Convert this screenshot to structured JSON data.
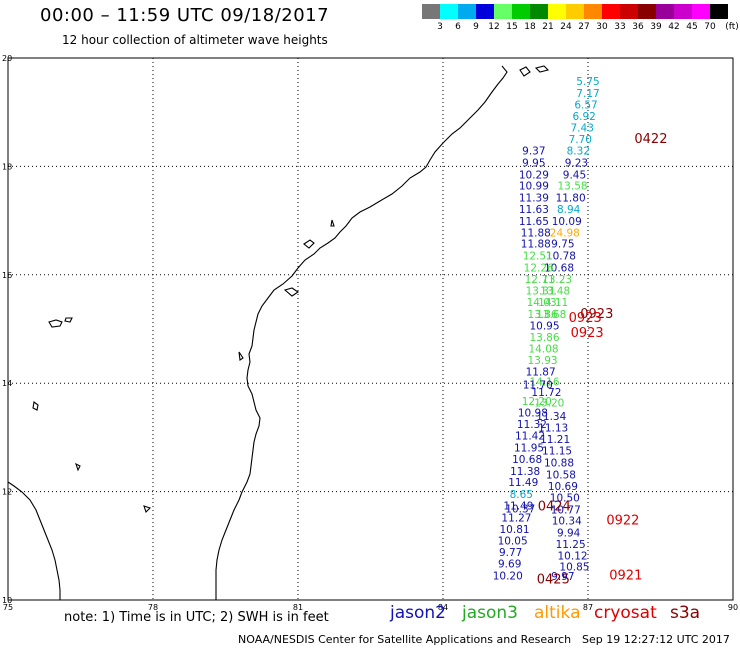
{
  "title": "00:00 – 11:59 UTC 09/18/2017",
  "subtitle": "12 hour collection of altimeter wave heights",
  "legend": {
    "unit": "(ft)",
    "bins": [
      {
        "color": "#777777",
        "label": "3"
      },
      {
        "color": "#00ffff",
        "label": "6"
      },
      {
        "color": "#00aaee",
        "label": "9"
      },
      {
        "color": "#0000dd",
        "label": "12"
      },
      {
        "color": "#66ff66",
        "label": "15"
      },
      {
        "color": "#00cc00",
        "label": "18"
      },
      {
        "color": "#008800",
        "label": "21"
      },
      {
        "color": "#ffff00",
        "label": "24"
      },
      {
        "color": "#ffcc00",
        "label": "27"
      },
      {
        "color": "#ff8800",
        "label": "30"
      },
      {
        "color": "#ff0000",
        "label": "33"
      },
      {
        "color": "#cc0000",
        "label": "36"
      },
      {
        "color": "#880000",
        "label": "39"
      },
      {
        "color": "#990099",
        "label": "42"
      },
      {
        "color": "#cc00cc",
        "label": "45"
      },
      {
        "color": "#ff00ff",
        "label": "70"
      },
      {
        "color": "#000000",
        "label": ""
      }
    ]
  },
  "map": {
    "lon_range": [
      75,
      90
    ],
    "lat_range": [
      10,
      20
    ],
    "lon_ticks": [
      75,
      78,
      81,
      84,
      87,
      90
    ],
    "lat_ticks": [
      10,
      12,
      14,
      16,
      18,
      20
    ]
  },
  "tracks": [
    {
      "lon": 87.0,
      "lat": 19.5,
      "value": "5.75",
      "color": "#00aacc"
    },
    {
      "lon": 87.0,
      "lat": 19.28,
      "value": "7.17",
      "color": "#00aacc"
    },
    {
      "lon": 86.96,
      "lat": 19.07,
      "value": "6.57",
      "color": "#00aacc"
    },
    {
      "lon": 86.92,
      "lat": 18.86,
      "value": "6.92",
      "color": "#00aacc"
    },
    {
      "lon": 86.88,
      "lat": 18.64,
      "value": "7.43",
      "color": "#00aacc"
    },
    {
      "lon": 86.84,
      "lat": 18.43,
      "value": "7.70",
      "color": "#00aacc"
    },
    {
      "lon": 86.8,
      "lat": 18.22,
      "value": "8.32",
      "color": "#00aacc"
    },
    {
      "lon": 86.76,
      "lat": 18.0,
      "value": "9.23",
      "color": "#1111aa"
    },
    {
      "lon": 86.72,
      "lat": 17.78,
      "value": "9.45",
      "color": "#1111aa"
    },
    {
      "lon": 86.68,
      "lat": 17.57,
      "value": "13.58",
      "color": "#44dd44"
    },
    {
      "lon": 86.64,
      "lat": 17.35,
      "value": "11.80",
      "color": "#1111aa"
    },
    {
      "lon": 86.6,
      "lat": 17.14,
      "value": "8.94",
      "color": "#00aacc"
    },
    {
      "lon": 86.56,
      "lat": 16.92,
      "value": "10.09",
      "color": "#1111aa"
    },
    {
      "lon": 86.52,
      "lat": 16.71,
      "value": "24.98",
      "color": "#ffaa00"
    },
    {
      "lon": 86.48,
      "lat": 16.5,
      "value": "9.75",
      "color": "#1111aa"
    },
    {
      "lon": 86.44,
      "lat": 16.28,
      "value": "10.78",
      "color": "#1111aa"
    },
    {
      "lon": 86.4,
      "lat": 16.06,
      "value": "10.68",
      "color": "#1111aa"
    },
    {
      "lon": 86.36,
      "lat": 15.85,
      "value": "13.23",
      "color": "#44dd44"
    },
    {
      "lon": 86.32,
      "lat": 15.64,
      "value": "13.48",
      "color": "#44dd44"
    },
    {
      "lon": 86.28,
      "lat": 15.42,
      "value": "14.11",
      "color": "#44dd44"
    },
    {
      "lon": 86.24,
      "lat": 15.2,
      "value": "13.68",
      "color": "#44dd44"
    },
    {
      "lon": 85.88,
      "lat": 18.22,
      "value": "9.37",
      "color": "#1111aa"
    },
    {
      "lon": 85.88,
      "lat": 18.0,
      "value": "9.95",
      "color": "#1111aa"
    },
    {
      "lon": 85.88,
      "lat": 17.78,
      "value": "10.29",
      "color": "#1111aa"
    },
    {
      "lon": 85.88,
      "lat": 17.57,
      "value": "10.99",
      "color": "#1111aa"
    },
    {
      "lon": 85.88,
      "lat": 17.35,
      "value": "11.39",
      "color": "#1111aa"
    },
    {
      "lon": 85.88,
      "lat": 17.14,
      "value": "11.63",
      "color": "#1111aa"
    },
    {
      "lon": 85.88,
      "lat": 16.92,
      "value": "11.65",
      "color": "#1111aa"
    },
    {
      "lon": 85.92,
      "lat": 16.71,
      "value": "11.88",
      "color": "#1111aa"
    },
    {
      "lon": 85.92,
      "lat": 16.5,
      "value": "11.88",
      "color": "#1111aa"
    },
    {
      "lon": 85.96,
      "lat": 16.28,
      "value": "12.51",
      "color": "#44dd44"
    },
    {
      "lon": 85.98,
      "lat": 16.06,
      "value": "12.26",
      "color": "#44dd44"
    },
    {
      "lon": 86.0,
      "lat": 15.85,
      "value": "12.71",
      "color": "#44dd44"
    },
    {
      "lon": 86.02,
      "lat": 15.64,
      "value": "13.31",
      "color": "#44dd44"
    },
    {
      "lon": 86.04,
      "lat": 15.42,
      "value": "14.03",
      "color": "#44dd44"
    },
    {
      "lon": 86.06,
      "lat": 15.2,
      "value": "13.86",
      "color": "#44dd44"
    },
    {
      "lon": 86.1,
      "lat": 14.99,
      "value": "10.95",
      "color": "#1111aa"
    },
    {
      "lon": 86.1,
      "lat": 14.78,
      "value": "13.86",
      "color": "#44dd44"
    },
    {
      "lon": 86.08,
      "lat": 14.57,
      "value": "14.08",
      "color": "#44dd44"
    },
    {
      "lon": 86.06,
      "lat": 14.35,
      "value": "13.93",
      "color": "#44dd44"
    },
    {
      "lon": 86.02,
      "lat": 14.14,
      "value": "11.87",
      "color": "#1111aa"
    },
    {
      "lon": 86.1,
      "lat": 13.96,
      "value": "14.16",
      "color": "#44dd44"
    },
    {
      "lon": 85.96,
      "lat": 13.9,
      "value": "11.70",
      "color": "#1111aa"
    },
    {
      "lon": 86.14,
      "lat": 13.76,
      "value": "11.72",
      "color": "#1111aa"
    },
    {
      "lon": 85.94,
      "lat": 13.6,
      "value": "12.20",
      "color": "#44dd44"
    },
    {
      "lon": 86.2,
      "lat": 13.57,
      "value": "13.20",
      "color": "#44dd44"
    },
    {
      "lon": 85.86,
      "lat": 13.39,
      "value": "10.98",
      "color": "#1111aa"
    },
    {
      "lon": 86.24,
      "lat": 13.32,
      "value": "11.34",
      "color": "#1111aa"
    },
    {
      "lon": 85.84,
      "lat": 13.17,
      "value": "11.32",
      "color": "#1111aa"
    },
    {
      "lon": 86.28,
      "lat": 13.11,
      "value": "11.13",
      "color": "#1111aa"
    },
    {
      "lon": 85.8,
      "lat": 12.96,
      "value": "11.42",
      "color": "#1111aa"
    },
    {
      "lon": 86.32,
      "lat": 12.9,
      "value": "11.21",
      "color": "#1111aa"
    },
    {
      "lon": 85.78,
      "lat": 12.74,
      "value": "11.95",
      "color": "#1111aa"
    },
    {
      "lon": 86.36,
      "lat": 12.68,
      "value": "11.15",
      "color": "#1111aa"
    },
    {
      "lon": 85.74,
      "lat": 12.53,
      "value": "10.68",
      "color": "#1111aa"
    },
    {
      "lon": 86.4,
      "lat": 12.46,
      "value": "10.88",
      "color": "#1111aa"
    },
    {
      "lon": 85.7,
      "lat": 12.31,
      "value": "11.38",
      "color": "#1111aa"
    },
    {
      "lon": 86.44,
      "lat": 12.24,
      "value": "10.58",
      "color": "#1111aa"
    },
    {
      "lon": 85.66,
      "lat": 12.1,
      "value": "11.49",
      "color": "#1111aa"
    },
    {
      "lon": 86.48,
      "lat": 12.03,
      "value": "10.69",
      "color": "#1111aa"
    },
    {
      "lon": 85.62,
      "lat": 11.88,
      "value": "8.65",
      "color": "#00aacc"
    },
    {
      "lon": 86.52,
      "lat": 11.82,
      "value": "10.50",
      "color": "#1111aa"
    },
    {
      "lon": 85.56,
      "lat": 11.67,
      "value": "11.49",
      "color": "#1111aa"
    },
    {
      "lon": 85.6,
      "lat": 11.61,
      "value": "10.37",
      "color": "#1111aa"
    },
    {
      "lon": 86.54,
      "lat": 11.6,
      "value": "10.77",
      "color": "#1111aa"
    },
    {
      "lon": 85.52,
      "lat": 11.45,
      "value": "11.27",
      "color": "#1111aa"
    },
    {
      "lon": 86.56,
      "lat": 11.39,
      "value": "10.34",
      "color": "#1111aa"
    },
    {
      "lon": 85.48,
      "lat": 11.24,
      "value": "10.81",
      "color": "#1111aa"
    },
    {
      "lon": 86.6,
      "lat": 11.17,
      "value": "9.94",
      "color": "#1111aa"
    },
    {
      "lon": 85.44,
      "lat": 11.02,
      "value": "10.05",
      "color": "#1111aa"
    },
    {
      "lon": 86.64,
      "lat": 10.96,
      "value": "11.25",
      "color": "#1111aa"
    },
    {
      "lon": 85.4,
      "lat": 10.81,
      "value": "9.77",
      "color": "#1111aa"
    },
    {
      "lon": 86.68,
      "lat": 10.75,
      "value": "10.12",
      "color": "#1111aa"
    },
    {
      "lon": 85.38,
      "lat": 10.6,
      "value": "9.69",
      "color": "#1111aa"
    },
    {
      "lon": 86.72,
      "lat": 10.54,
      "value": "10.85",
      "color": "#1111aa"
    },
    {
      "lon": 85.34,
      "lat": 10.38,
      "value": "10.20",
      "color": "#1111aa"
    },
    {
      "lon": 86.48,
      "lat": 10.37,
      "value": "9.97",
      "color": "#1111aa"
    }
  ],
  "pass_labels": [
    {
      "lon": 87.96,
      "lat": 18.43,
      "text": "0422",
      "color": "#880000"
    },
    {
      "lon": 86.84,
      "lat": 15.2,
      "text": "0923",
      "color": "#880000"
    },
    {
      "lon": 86.6,
      "lat": 15.13,
      "text": "0923",
      "color": "#dd0000"
    },
    {
      "lon": 86.64,
      "lat": 14.85,
      "text": "0923",
      "color": "#dd0000"
    },
    {
      "lon": 85.96,
      "lat": 11.65,
      "text": "0424",
      "color": "#880000"
    },
    {
      "lon": 87.38,
      "lat": 11.39,
      "text": "0922",
      "color": "#dd0000"
    },
    {
      "lon": 85.94,
      "lat": 10.3,
      "text": "0425",
      "color": "#880000"
    },
    {
      "lon": 87.44,
      "lat": 10.38,
      "text": "0921",
      "color": "#dd0000"
    }
  ],
  "footer": {
    "note": "note: 1) Time is in UTC; 2) SWH is in feet",
    "satellites": [
      {
        "name": "jason2",
        "color": "#1111bb"
      },
      {
        "name": "jason3",
        "color": "#22aa22"
      },
      {
        "name": "altika",
        "color": "#ff9900"
      },
      {
        "name": "cryosat",
        "color": "#dd0000"
      },
      {
        "name": "s3a",
        "color": "#880000"
      }
    ],
    "credit": "NOAA/NESDIS Center for Satellite Applications and Research",
    "timestamp": "Sep 19 12:27:12 UTC 2017"
  }
}
